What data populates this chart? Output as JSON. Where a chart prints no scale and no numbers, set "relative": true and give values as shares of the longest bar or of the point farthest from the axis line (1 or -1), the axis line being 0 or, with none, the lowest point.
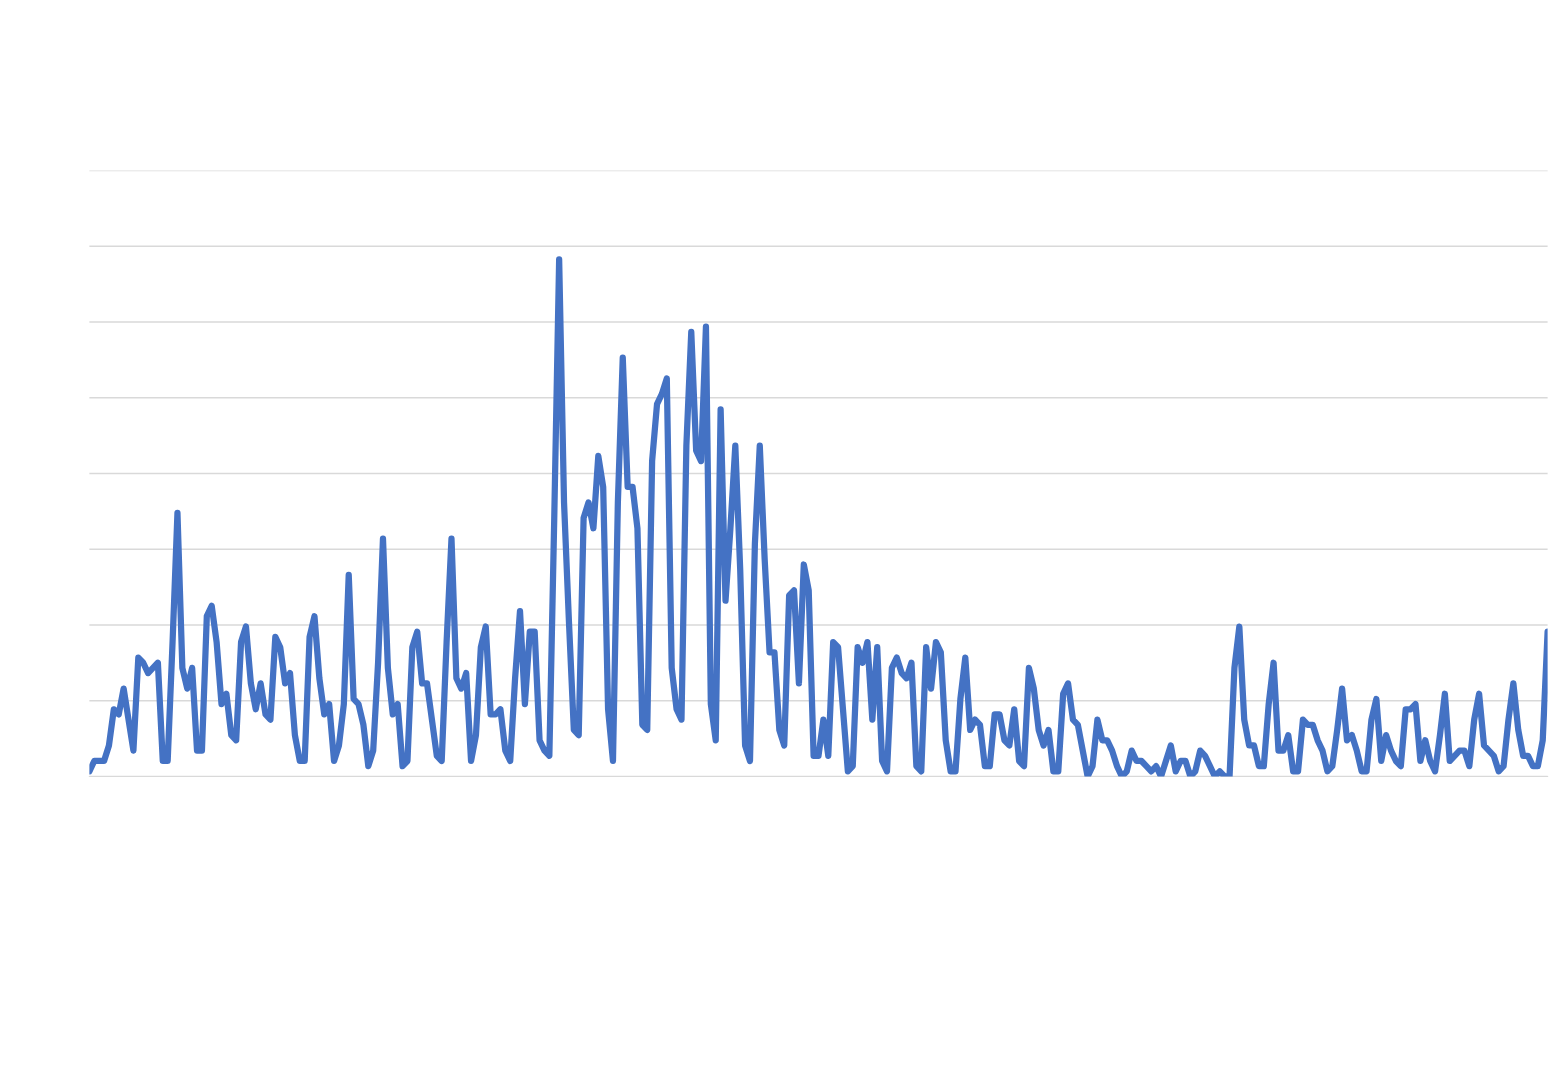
{
  "chart_data": {
    "type": "line",
    "relative": true,
    "grid": "y",
    "categories": [
      null,
      null,
      null,
      null,
      null,
      null,
      null,
      null,
      null,
      null,
      null,
      null,
      null,
      null,
      null,
      null,
      null,
      null,
      null,
      null,
      null,
      null,
      null,
      null,
      null,
      null,
      null,
      null,
      null,
      null,
      null,
      null,
      null,
      null,
      null,
      null,
      null,
      null,
      null,
      null,
      null,
      null,
      null,
      null,
      null,
      null,
      null,
      null,
      null,
      null,
      null,
      null,
      null,
      null,
      null,
      null,
      null,
      null,
      null,
      null,
      null,
      null,
      null,
      null,
      null,
      null,
      null,
      null,
      null,
      null,
      null,
      null,
      null,
      null,
      null,
      null,
      null,
      null,
      null,
      null,
      null,
      null,
      null,
      null,
      null,
      null,
      null,
      null,
      null,
      null,
      null,
      null,
      null,
      null,
      null,
      null,
      null,
      null,
      null,
      null,
      null,
      null,
      null,
      null,
      null,
      null,
      null,
      null,
      null,
      null,
      null,
      null,
      null,
      null,
      null,
      null,
      null,
      null,
      null,
      null,
      null,
      null,
      null,
      null,
      null,
      null,
      null,
      null,
      null,
      null,
      null,
      null,
      null,
      null,
      null,
      null,
      null,
      null,
      null,
      null,
      null,
      null,
      null,
      null,
      null,
      null,
      null,
      null,
      null,
      null,
      null,
      null,
      null,
      null,
      null,
      null,
      null,
      null,
      null,
      null,
      null,
      null,
      null,
      null,
      null,
      null,
      null,
      null,
      null,
      null,
      null,
      null,
      null,
      null,
      null,
      null,
      null,
      null,
      null,
      null,
      null,
      null,
      null,
      null,
      null,
      null,
      null,
      null,
      null,
      null,
      null,
      null,
      null,
      null,
      null,
      null,
      null,
      null,
      null,
      null,
      null,
      null,
      null,
      null,
      null,
      null,
      null,
      null,
      null,
      null,
      null,
      null,
      null,
      null,
      null,
      null,
      null,
      null,
      null,
      null,
      null,
      null,
      null,
      null,
      null,
      null,
      null,
      null,
      null,
      null,
      null,
      null,
      null,
      null,
      null,
      null,
      null,
      null,
      null,
      null,
      null,
      null,
      null,
      null,
      null,
      null,
      null,
      null,
      null,
      null,
      null,
      null,
      null,
      null,
      null,
      null,
      null,
      null,
      null,
      null,
      null,
      null,
      null,
      null,
      null,
      null,
      null,
      null,
      null,
      null,
      null,
      null,
      null,
      null,
      null,
      null,
      null,
      null,
      null,
      null,
      null,
      null,
      null,
      null,
      null,
      null,
      null,
      null,
      null,
      null,
      null,
      null,
      null,
      null,
      null,
      null,
      null,
      null,
      null
    ],
    "series": [
      {
        "color": "#4472c4",
        "values": [
          0.01,
          0.03,
          0.03,
          0.03,
          0.06,
          0.13,
          0.12,
          0.17,
          0.11,
          0.05,
          0.23,
          0.22,
          0.2,
          0.21,
          0.22,
          0.03,
          0.03,
          0.26,
          0.51,
          0.21,
          0.17,
          0.21,
          0.05,
          0.05,
          0.31,
          0.33,
          0.26,
          0.14,
          0.16,
          0.08,
          0.07,
          0.26,
          0.29,
          0.18,
          0.13,
          0.18,
          0.12,
          0.11,
          0.27,
          0.25,
          0.18,
          0.2,
          0.08,
          0.03,
          0.03,
          0.27,
          0.31,
          0.19,
          0.12,
          0.14,
          0.03,
          0.06,
          0.14,
          0.39,
          0.15,
          0.14,
          0.1,
          0.02,
          0.05,
          0.22,
          0.46,
          0.21,
          0.12,
          0.14,
          0.02,
          0.03,
          0.25,
          0.28,
          0.18,
          0.18,
          0.11,
          0.04,
          0.03,
          0.26,
          0.46,
          0.19,
          0.17,
          0.2,
          0.03,
          0.08,
          0.25,
          0.29,
          0.12,
          0.12,
          0.13,
          0.05,
          0.03,
          0.19,
          0.32,
          0.14,
          0.28,
          0.28,
          0.07,
          0.05,
          0.04,
          0.5,
          1.0,
          0.53,
          0.3,
          0.09,
          0.08,
          0.5,
          0.53,
          0.48,
          0.62,
          0.56,
          0.13,
          0.03,
          0.53,
          0.81,
          0.56,
          0.56,
          0.48,
          0.1,
          0.09,
          0.61,
          0.72,
          0.74,
          0.77,
          0.21,
          0.13,
          0.11,
          0.64,
          0.86,
          0.63,
          0.61,
          0.87,
          0.14,
          0.07,
          0.71,
          0.34,
          0.48,
          0.64,
          0.4,
          0.06,
          0.03,
          0.45,
          0.64,
          0.42,
          0.24,
          0.24,
          0.09,
          0.06,
          0.35,
          0.36,
          0.18,
          0.41,
          0.36,
          0.04,
          0.04,
          0.11,
          0.04,
          0.26,
          0.25,
          0.13,
          0.01,
          0.02,
          0.25,
          0.22,
          0.26,
          0.11,
          0.25,
          0.03,
          0.01,
          0.21,
          0.23,
          0.2,
          0.19,
          0.22,
          0.02,
          0.01,
          0.25,
          0.17,
          0.26,
          0.24,
          0.07,
          0.01,
          0.01,
          0.15,
          0.23,
          0.09,
          0.11,
          0.1,
          0.02,
          0.02,
          0.12,
          0.12,
          0.07,
          0.06,
          0.13,
          0.03,
          0.02,
          0.21,
          0.17,
          0.09,
          0.06,
          0.09,
          0.01,
          0.01,
          0.16,
          0.18,
          0.11,
          0.1,
          0.05,
          0.0,
          0.02,
          0.11,
          0.07,
          0.07,
          0.05,
          0.02,
          0.0,
          0.01,
          0.05,
          0.03,
          0.03,
          0.02,
          0.01,
          0.02,
          0.0,
          0.03,
          0.06,
          0.01,
          0.03,
          0.03,
          0.0,
          0.01,
          0.05,
          0.04,
          0.02,
          0.0,
          0.01,
          0.0,
          0.0,
          0.21,
          0.29,
          0.11,
          0.06,
          0.06,
          0.02,
          0.02,
          0.14,
          0.22,
          0.05,
          0.05,
          0.08,
          0.01,
          0.01,
          0.11,
          0.1,
          0.1,
          0.07,
          0.05,
          0.01,
          0.02,
          0.09,
          0.17,
          0.07,
          0.08,
          0.05,
          0.01,
          0.01,
          0.11,
          0.15,
          0.03,
          0.08,
          0.05,
          0.03,
          0.02,
          0.13,
          0.13,
          0.14,
          0.03,
          0.07,
          0.03,
          0.01,
          0.08,
          0.16,
          0.03,
          0.04,
          0.05,
          0.05,
          0.02,
          0.11,
          0.16,
          0.06,
          0.05,
          0.04,
          0.01,
          0.02,
          0.11,
          0.18,
          0.09,
          0.04,
          0.04,
          0.02,
          0.02,
          0.07,
          0.28
        ]
      }
    ]
  }
}
